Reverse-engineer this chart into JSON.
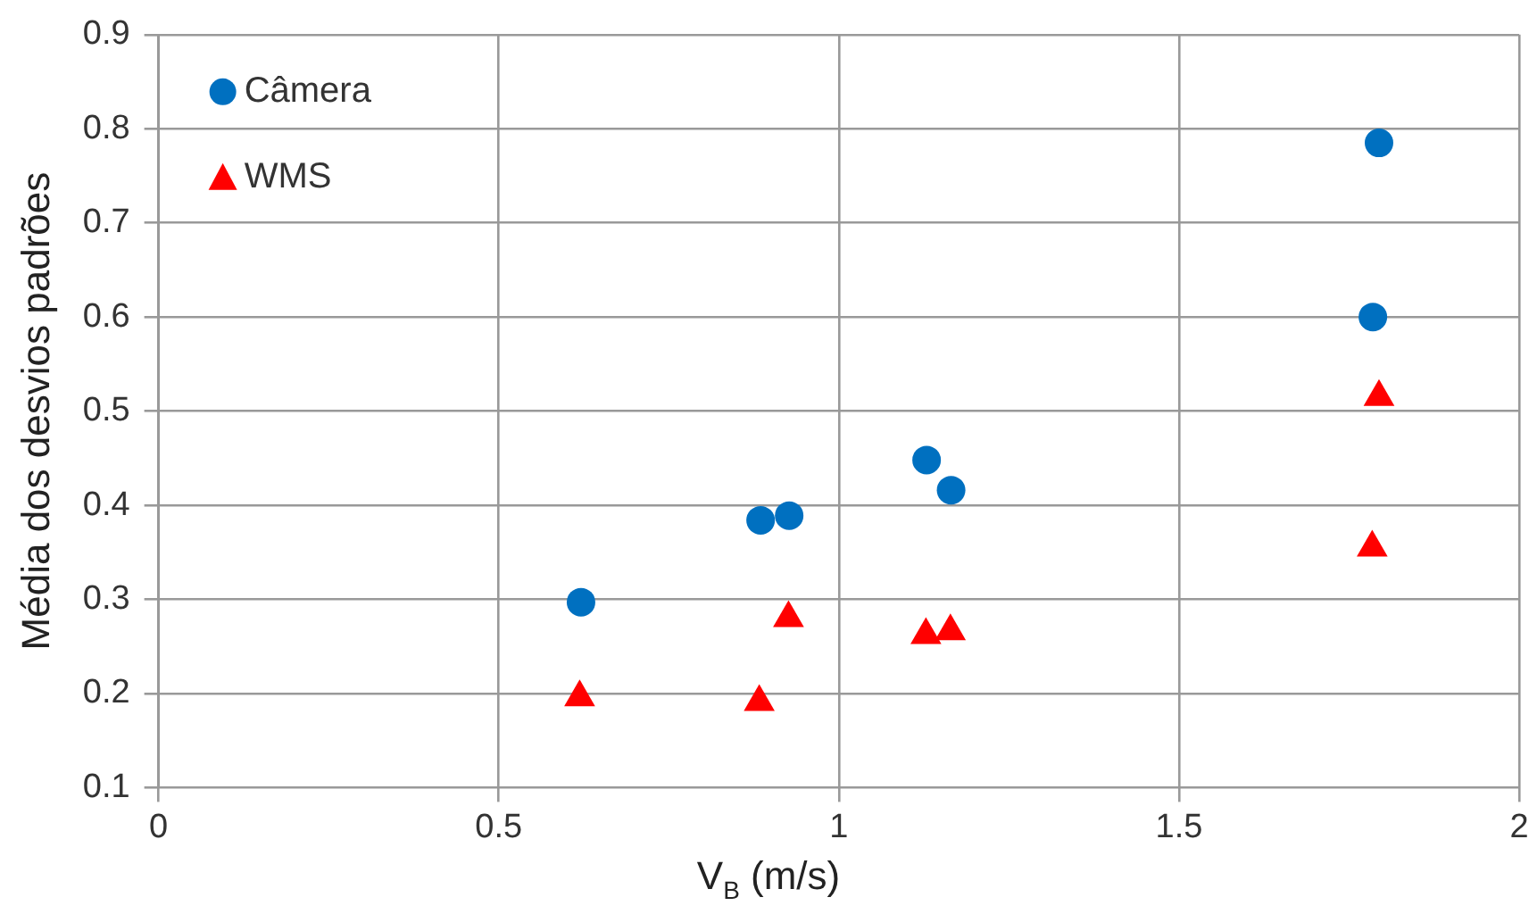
{
  "chart_data": {
    "type": "scatter",
    "xlabel": "V$_{B}$ (m/s)",
    "ylabel": "Média dos desvios padrões",
    "xlim": [
      0,
      2
    ],
    "xticks": [
      0,
      0.5,
      1,
      1.5,
      2
    ],
    "ylim": [
      0.1,
      0.9
    ],
    "yticks": [
      0.1,
      0.2,
      0.3,
      0.4,
      0.5,
      0.6,
      0.7,
      0.8,
      0.9
    ],
    "grid": true,
    "legend": "top left",
    "series": [
      {
        "name": "Câmera",
        "color": "#0070c0",
        "marker": "circle",
        "x": [
          0.621,
          0.885,
          0.927,
          1.129,
          1.165,
          1.785,
          1.794
        ],
        "values": [
          0.297,
          0.384,
          0.389,
          0.448,
          0.416,
          0.6,
          0.785
        ]
      },
      {
        "name": "WMS",
        "color": "#ff0000",
        "marker": "triangle",
        "x": [
          0.619,
          0.883,
          0.926,
          1.128,
          1.164,
          1.784,
          1.794
        ],
        "values": [
          0.196,
          0.191,
          0.28,
          0.262,
          0.266,
          0.355,
          0.515
        ]
      }
    ]
  }
}
